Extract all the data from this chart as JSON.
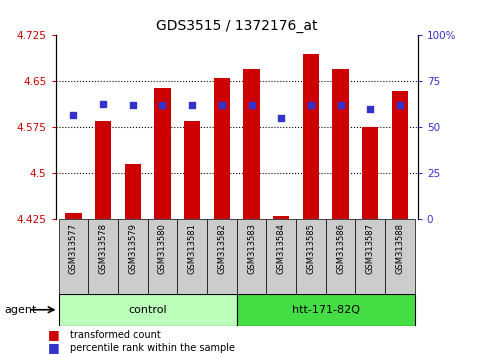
{
  "title": "GDS3515 / 1372176_at",
  "samples": [
    "GSM313577",
    "GSM313578",
    "GSM313579",
    "GSM313580",
    "GSM313581",
    "GSM313582",
    "GSM313583",
    "GSM313584",
    "GSM313585",
    "GSM313586",
    "GSM313587",
    "GSM313588"
  ],
  "bar_values": [
    4.435,
    4.585,
    4.515,
    4.64,
    4.585,
    4.655,
    4.67,
    4.43,
    4.695,
    4.67,
    4.575,
    4.635
  ],
  "percentile_values": [
    57,
    63,
    62,
    62,
    62,
    62,
    62,
    55,
    62,
    62,
    60,
    62
  ],
  "y_min": 4.425,
  "y_max": 4.725,
  "y_ticks": [
    4.425,
    4.5,
    4.575,
    4.65,
    4.725
  ],
  "y_tick_labels": [
    "4.425",
    "4.5",
    "4.575",
    "4.65",
    "4.725"
  ],
  "right_y_ticks": [
    0,
    25,
    50,
    75,
    100
  ],
  "right_y_tick_labels": [
    "0",
    "25",
    "50",
    "75",
    "100%"
  ],
  "bar_color": "#CC0000",
  "dot_color": "#3333CC",
  "grid_color": "#000000",
  "agent_label": "agent",
  "right_axis_color": "#3333CC",
  "tick_label_color_left": "#CC0000",
  "tick_label_color_right": "#3333CC",
  "legend_items": [
    {
      "label": "transformed count",
      "color": "#CC0000"
    },
    {
      "label": "percentile rank within the sample",
      "color": "#3333CC"
    }
  ],
  "bg_color": "#FFFFFF",
  "plot_bg": "#FFFFFF",
  "bar_width": 0.55,
  "control_color": "#BBFFBB",
  "htt_color": "#44DD44",
  "label_bg": "#CCCCCC"
}
